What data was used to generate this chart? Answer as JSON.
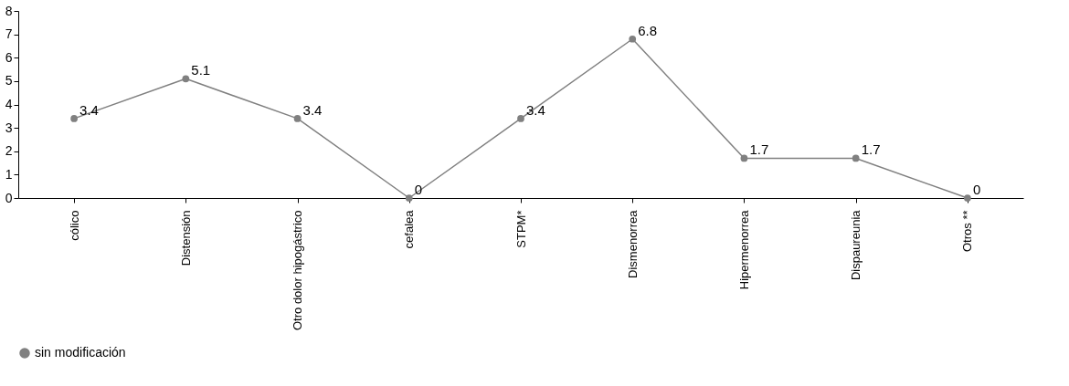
{
  "chart_data": {
    "type": "line",
    "categories": [
      "cólico",
      "Distensión",
      "Otro dolor hipogástrico",
      "cefalea",
      "STPM*",
      "Dismenorrea",
      "Hipermenorrea",
      "Dispaureunia",
      "Otros **"
    ],
    "series": [
      {
        "name": "sin modificación",
        "color": "#808080",
        "values": [
          3.4,
          5.1,
          3.4,
          0,
          3.4,
          6.8,
          1.7,
          1.7,
          0
        ]
      }
    ],
    "ylim": [
      0,
      8
    ],
    "yticks": [
      0,
      1,
      2,
      3,
      4,
      5,
      6,
      7,
      8
    ],
    "grid": false,
    "legend": "bottom",
    "marker": "circle",
    "line_style": "solid",
    "data_labels": true
  }
}
